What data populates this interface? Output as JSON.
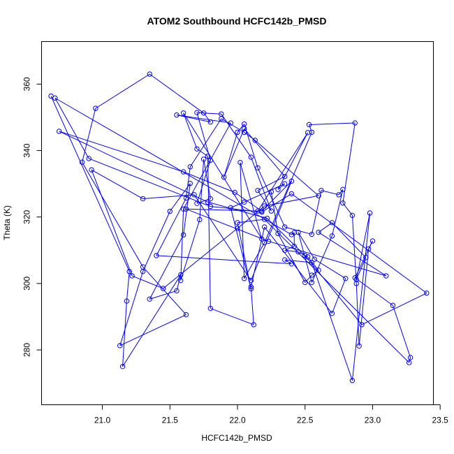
{
  "chart_data": {
    "type": "line",
    "title": "ATOM2 Southbound HCFC142b_PMSD",
    "xlabel": "HCFC142b_PMSD",
    "ylabel": "Theta (K)",
    "xlim": [
      20.55,
      23.45
    ],
    "ylim": [
      263.5,
      372.8
    ],
    "xticks": [
      21.0,
      21.5,
      22.0,
      22.5,
      23.0,
      23.5
    ],
    "xtick_labels": [
      "21.0",
      "21.5",
      "22.0",
      "22.5",
      "23.0",
      "23.5"
    ],
    "yticks": [
      280,
      300,
      320,
      340,
      360
    ],
    "ytick_labels": [
      "280",
      "300",
      "320",
      "340",
      "360"
    ],
    "grid": false,
    "legend": "none",
    "series": [
      {
        "color": "#0000ff",
        "marker": "open-circle",
        "points": [
          [
            20.62,
            356.4
          ],
          [
            21.2,
            303.6
          ],
          [
            21.18,
            294.7
          ],
          [
            21.15,
            275.0
          ],
          [
            21.58,
            302.6
          ],
          [
            21.55,
            297.8
          ],
          [
            21.35,
            295.3
          ],
          [
            21.6,
            314.6
          ],
          [
            21.65,
            330.1
          ],
          [
            21.5,
            321.7
          ],
          [
            21.3,
            303.6
          ],
          [
            21.13,
            281.3
          ],
          [
            21.62,
            290.6
          ],
          [
            21.3,
            305.0
          ],
          [
            20.85,
            336.5
          ],
          [
            20.95,
            352.7
          ],
          [
            21.35,
            363.0
          ],
          [
            21.75,
            351.3
          ],
          [
            21.8,
            348.6
          ],
          [
            21.55,
            350.7
          ],
          [
            21.95,
            348.3
          ],
          [
            21.6,
            322.4
          ],
          [
            21.58,
            300.9
          ],
          [
            21.72,
            319.2
          ],
          [
            21.75,
            337.4
          ],
          [
            21.8,
            325.5
          ],
          [
            21.7,
            324.1
          ],
          [
            21.8,
            337.1
          ],
          [
            21.7,
            351.4
          ],
          [
            21.88,
            351.0
          ],
          [
            22.1,
            338.0
          ],
          [
            22.25,
            321.8
          ],
          [
            22.15,
            328.0
          ],
          [
            22.35,
            332.2
          ],
          [
            22.05,
            346.6
          ],
          [
            21.9,
            332.0
          ],
          [
            22.0,
            345.5
          ],
          [
            22.05,
            348.0
          ],
          [
            22.15,
            334.8
          ],
          [
            22.35,
            317.0
          ],
          [
            22.55,
            314.8
          ],
          [
            22.62,
            328.0
          ],
          [
            22.75,
            326.7
          ],
          [
            22.78,
            328.3
          ],
          [
            22.7,
            314.3
          ],
          [
            22.55,
            300.3
          ],
          [
            22.45,
            315.4
          ],
          [
            22.57,
            307.3
          ],
          [
            22.8,
            301.5
          ],
          [
            22.7,
            291.0
          ],
          [
            22.2,
            317.0
          ],
          [
            22.1,
            299.0
          ],
          [
            22.12,
            287.6
          ],
          [
            21.8,
            292.5
          ],
          [
            21.78,
            338.3
          ],
          [
            21.7,
            340.5
          ],
          [
            21.6,
            351.3
          ],
          [
            22.18,
            313.4
          ],
          [
            22.02,
            336.4
          ],
          [
            22.05,
            301.5
          ],
          [
            22.2,
            312.3
          ],
          [
            22.55,
            345.5
          ],
          [
            22.53,
            347.8
          ],
          [
            22.87,
            348.3
          ],
          [
            22.78,
            324.2
          ],
          [
            22.85,
            320.5
          ],
          [
            22.88,
            300.0
          ],
          [
            22.9,
            281.2
          ],
          [
            22.97,
            310.4
          ],
          [
            23.0,
            312.8
          ],
          [
            22.87,
            301.7
          ],
          [
            23.15,
            293.4
          ],
          [
            23.28,
            277.7
          ],
          [
            23.27,
            276.2
          ],
          [
            22.2,
            319.3
          ],
          [
            22.0,
            318.3
          ],
          [
            22.1,
            298.4
          ],
          [
            21.95,
            322.8
          ],
          [
            22.05,
            324.5
          ],
          [
            22.35,
            330.0
          ],
          [
            22.3,
            328.3
          ],
          [
            22.52,
            345.4
          ],
          [
            22.15,
            321.8
          ],
          [
            21.62,
            322.4
          ],
          [
            22.23,
            312.7
          ],
          [
            23.1,
            302.3
          ],
          [
            22.6,
            315.4
          ],
          [
            22.7,
            318.3
          ],
          [
            22.95,
            307.8
          ],
          [
            22.88,
            301.2
          ],
          [
            22.98,
            321.2
          ],
          [
            22.85,
            270.8
          ],
          [
            22.55,
            306.3
          ],
          [
            22.35,
            307.1
          ],
          [
            22.4,
            305.9
          ],
          [
            21.4,
            308.4
          ],
          [
            21.62,
            325.7
          ],
          [
            21.65,
            335.1
          ],
          [
            21.88,
            349.6
          ],
          [
            22.05,
            345.5
          ],
          [
            22.13,
            343.1
          ],
          [
            22.6,
            326.4
          ],
          [
            22.2,
            323.3
          ],
          [
            22.0,
            316.6
          ],
          [
            21.45,
            298.5
          ],
          [
            21.22,
            302.3
          ],
          [
            20.92,
            334.2
          ],
          [
            21.3,
            325.5
          ],
          [
            21.68,
            326.7
          ],
          [
            22.1,
            300.9
          ],
          [
            22.4,
            330.8
          ],
          [
            22.18,
            321.8
          ],
          [
            21.98,
            327.4
          ],
          [
            21.6,
            333.6
          ],
          [
            20.68,
            345.8
          ],
          [
            21.78,
            324.5
          ],
          [
            22.22,
            319.6
          ],
          [
            22.5,
            308.4
          ],
          [
            22.92,
            287.6
          ],
          [
            23.4,
            297.1
          ],
          [
            22.4,
            327.0
          ],
          [
            22.18,
            321.5
          ],
          [
            21.8,
            323.2
          ],
          [
            20.9,
            337.6
          ],
          [
            20.65,
            355.8
          ],
          [
            22.4,
            314.7
          ],
          [
            22.42,
            315.3
          ],
          [
            22.42,
            311.2
          ],
          [
            22.35,
            310.0
          ],
          [
            22.45,
            309.5
          ],
          [
            22.52,
            308.0
          ],
          [
            22.6,
            304.0
          ],
          [
            22.55,
            302.5
          ],
          [
            22.5,
            300.3
          ],
          [
            22.3,
            315.0
          ],
          [
            22.25,
            327.6
          ]
        ]
      }
    ]
  }
}
